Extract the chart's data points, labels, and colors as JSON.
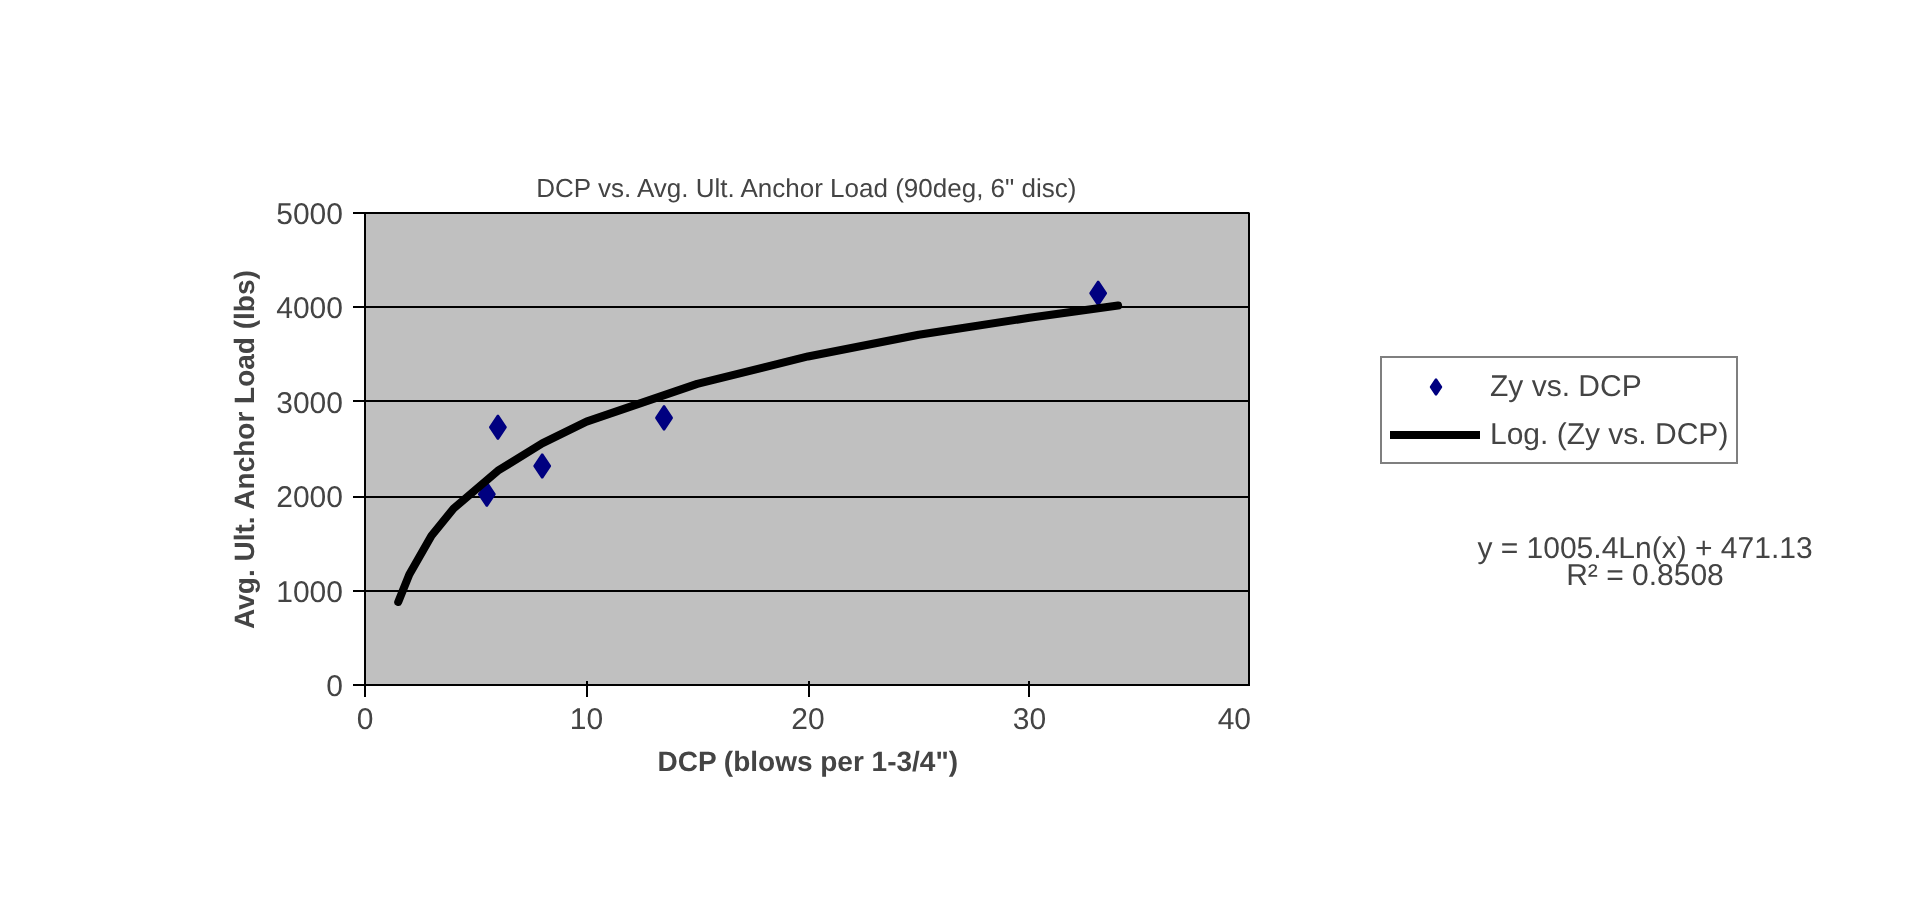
{
  "chart_data": {
    "type": "scatter",
    "title": "DCP vs. Avg. Ult. Anchor Load (90deg, 6\" disc)",
    "xlabel": "DCP (blows per 1-3/4\")",
    "ylabel": "Avg. Ult. Anchor Load (lbs)",
    "series": [
      {
        "name": "Zy vs. DCP",
        "color": "#000080",
        "marker": "diamond",
        "x": [
          5.5,
          6.0,
          8.0,
          13.5,
          33.1
        ],
        "values": [
          2020,
          2730,
          2320,
          2830,
          4150
        ]
      },
      {
        "name": "Log. (Zy vs. DCP)",
        "type": "line",
        "color": "#000000",
        "line_style": "solid",
        "x": [
          1.5,
          2,
          3,
          4,
          6,
          8,
          10,
          15,
          20,
          25,
          30,
          34
        ],
        "values": [
          880,
          1170,
          1580,
          1870,
          2270,
          2560,
          2790,
          3190,
          3480,
          3710,
          3890,
          4020
        ]
      }
    ],
    "xlim": [
      0,
      40
    ],
    "xticks": [
      0,
      10,
      20,
      30,
      40
    ],
    "ylim": [
      0,
      5000
    ],
    "yticks": [
      0,
      1000,
      2000,
      3000,
      4000,
      5000
    ],
    "grid": "y",
    "legend": "right",
    "annotations": [
      "y = 1005.4Ln(x) + 471.13",
      "R² = 0.8508"
    ]
  }
}
